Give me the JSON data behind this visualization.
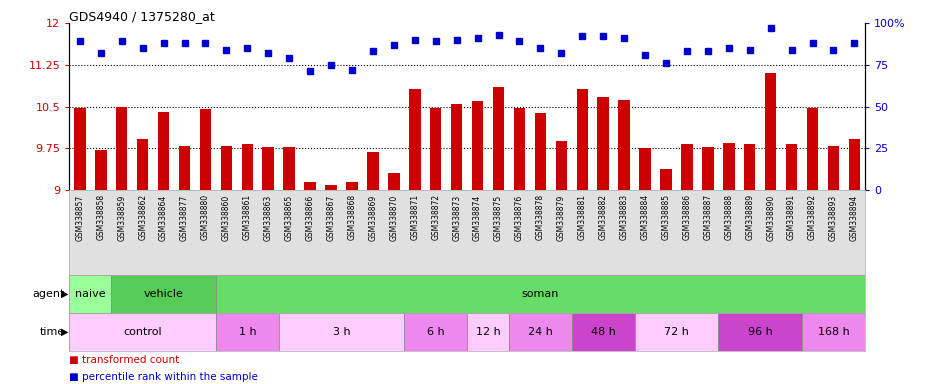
{
  "title": "GDS4940 / 1375280_at",
  "samples": [
    "GSM338857",
    "GSM338858",
    "GSM338859",
    "GSM338862",
    "GSM338864",
    "GSM338877",
    "GSM338880",
    "GSM338860",
    "GSM338861",
    "GSM338863",
    "GSM338865",
    "GSM338866",
    "GSM338867",
    "GSM338868",
    "GSM338869",
    "GSM338870",
    "GSM338871",
    "GSM338872",
    "GSM338873",
    "GSM338874",
    "GSM338875",
    "GSM338876",
    "GSM338878",
    "GSM338879",
    "GSM338881",
    "GSM338882",
    "GSM338883",
    "GSM338884",
    "GSM338885",
    "GSM338886",
    "GSM338887",
    "GSM338888",
    "GSM338889",
    "GSM338890",
    "GSM338891",
    "GSM338892",
    "GSM338893",
    "GSM338894"
  ],
  "bar_values": [
    10.48,
    9.72,
    10.49,
    9.92,
    10.4,
    9.8,
    10.45,
    9.8,
    9.82,
    9.78,
    9.78,
    9.15,
    9.1,
    9.14,
    9.68,
    9.3,
    10.82,
    10.48,
    10.55,
    10.6,
    10.85,
    10.47,
    10.38,
    9.88,
    10.82,
    10.68,
    10.62,
    9.75,
    9.38,
    9.82,
    9.78,
    9.85,
    9.82,
    11.1,
    9.82,
    10.48,
    9.8,
    9.92
  ],
  "percentile_values": [
    89,
    82,
    89,
    85,
    88,
    88,
    88,
    84,
    85,
    82,
    79,
    71,
    75,
    72,
    83,
    87,
    90,
    89,
    90,
    91,
    93,
    89,
    85,
    82,
    92,
    92,
    91,
    81,
    76,
    83,
    83,
    85,
    84,
    97,
    84,
    88,
    84,
    88
  ],
  "ylim_left": [
    9.0,
    12.0
  ],
  "ylim_right": [
    0,
    100
  ],
  "yticks_left": [
    9.0,
    9.75,
    10.5,
    11.25,
    12.0
  ],
  "ytick_labels_left": [
    "9",
    "9.75",
    "10.5",
    "11.25",
    "12"
  ],
  "yticks_right": [
    0,
    25,
    50,
    75,
    100
  ],
  "ytick_labels_right": [
    "0",
    "25",
    "50",
    "75",
    "100%"
  ],
  "bar_color": "#cc0000",
  "dot_color": "#0000cc",
  "bar_bottom": 9.0,
  "hlines": [
    9.75,
    10.5,
    11.25
  ],
  "agent_groups": [
    {
      "label": "naive",
      "start": 0,
      "end": 2,
      "color": "#99ff99"
    },
    {
      "label": "vehicle",
      "start": 2,
      "end": 7,
      "color": "#55cc55"
    },
    {
      "label": "soman",
      "start": 7,
      "end": 38,
      "color": "#66dd66"
    }
  ],
  "time_groups": [
    {
      "label": "control",
      "start": 0,
      "end": 7,
      "color": "#ffccff"
    },
    {
      "label": "1 h",
      "start": 7,
      "end": 10,
      "color": "#ee88ee"
    },
    {
      "label": "3 h",
      "start": 10,
      "end": 16,
      "color": "#ffccff"
    },
    {
      "label": "6 h",
      "start": 16,
      "end": 19,
      "color": "#ee88ee"
    },
    {
      "label": "12 h",
      "start": 19,
      "end": 21,
      "color": "#ffccff"
    },
    {
      "label": "24 h",
      "start": 21,
      "end": 24,
      "color": "#ee88ee"
    },
    {
      "label": "48 h",
      "start": 24,
      "end": 27,
      "color": "#cc44cc"
    },
    {
      "label": "72 h",
      "start": 27,
      "end": 31,
      "color": "#ffccff"
    },
    {
      "label": "96 h",
      "start": 31,
      "end": 35,
      "color": "#cc44cc"
    },
    {
      "label": "168 h",
      "start": 35,
      "end": 38,
      "color": "#ee88ee"
    }
  ],
  "plot_bg": "#ffffff",
  "xlabel_bg": "#e0e0e0"
}
